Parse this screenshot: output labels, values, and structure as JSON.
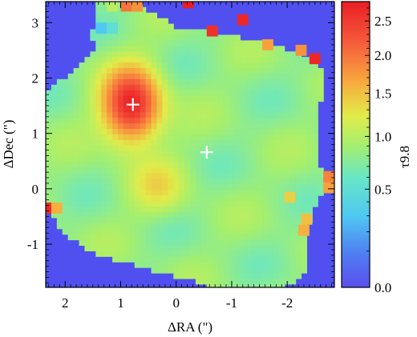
{
  "chart_data": {
    "type": "heatmap",
    "xlabel": "ΔRA (\")",
    "ylabel": "ΔDec (\")",
    "colorbar_label": "τ9.8",
    "x_ticks": [
      "2",
      "1",
      "0",
      "-1",
      "-2"
    ],
    "x_tick_values": [
      2,
      1,
      0,
      -1,
      -2
    ],
    "y_ticks": [
      "3",
      "2",
      "1",
      "0",
      "-1"
    ],
    "y_tick_values": [
      3,
      2,
      1,
      0,
      -1
    ],
    "xlim": [
      2.35,
      -2.85
    ],
    "ylim": [
      -1.78,
      3.38
    ],
    "colorbar_ticks": [
      "2.5",
      "2.0",
      "1.5",
      "1.0",
      "0.5",
      "0.0"
    ],
    "colorbar_tick_values": [
      2.5,
      2.0,
      1.5,
      1.0,
      0.5,
      0.0
    ],
    "colorbar_range": [
      0.0,
      2.8
    ],
    "background_color": "#5050f0",
    "markers": [
      {
        "symbol": "+",
        "color": "#ffffff",
        "ra": 0.78,
        "dec": 1.52
      },
      {
        "symbol": "+",
        "color": "#ffffff",
        "ra": -0.55,
        "dec": 0.66
      }
    ],
    "blobs": [
      {
        "ra": 0.8,
        "dec": 1.5,
        "peak": 2.75,
        "sigma_ra": 0.35,
        "sigma_dec": 0.45
      },
      {
        "ra": 0.32,
        "dec": 0.02,
        "peak": 1.25,
        "sigma_ra": 0.35,
        "sigma_dec": 0.35
      }
    ],
    "base_level": 0.82,
    "outline_dec": [
      3.35,
      2.9,
      2.7,
      2.55,
      2.4,
      2.2,
      1.8,
      1.3,
      0.9,
      0.4,
      0.0,
      -0.4,
      -0.8,
      -1.2,
      -1.5,
      -1.75
    ],
    "outline_ra_left": [
      1.45,
      1.5,
      1.5,
      1.4,
      1.6,
      1.75,
      2.3,
      2.3,
      2.3,
      2.3,
      2.3,
      2.3,
      2.05,
      1.45,
      0.3,
      -0.6
    ],
    "outline_ra_right": [
      0.8,
      -0.05,
      -1.4,
      -1.9,
      -2.3,
      -2.65,
      -2.65,
      -2.55,
      -2.6,
      -2.6,
      -2.65,
      -2.45,
      -2.35,
      -2.35,
      -2.35,
      -2.0
    ],
    "outlier_pixels": [
      {
        "ra": -0.22,
        "dec": 3.36,
        "value": 2.8
      },
      {
        "ra": -1.2,
        "dec": 3.05,
        "value": 2.7
      },
      {
        "ra": -0.65,
        "dec": 2.85,
        "value": 2.6
      },
      {
        "ra": -2.5,
        "dec": 2.35,
        "value": 2.7
      },
      {
        "ra": -2.25,
        "dec": 2.5,
        "value": 1.8
      },
      {
        "ra": -1.65,
        "dec": 2.6,
        "value": 1.7
      },
      {
        "ra": 2.25,
        "dec": -0.35,
        "value": 2.7
      },
      {
        "ra": 2.15,
        "dec": -0.35,
        "value": 1.6
      },
      {
        "ra": -2.75,
        "dec": 0.22,
        "value": 1.9
      },
      {
        "ra": -2.75,
        "dec": 0.02,
        "value": 1.7
      },
      {
        "ra": -2.05,
        "dec": -0.15,
        "value": 1.4
      },
      {
        "ra": -2.35,
        "dec": -0.55,
        "value": 1.5
      },
      {
        "ra": -2.3,
        "dec": -0.75,
        "value": 1.6
      },
      {
        "ra": 0.7,
        "dec": 3.3,
        "value": 1.8
      },
      {
        "ra": 0.9,
        "dec": 3.3,
        "value": 2.0
      },
      {
        "ra": 1.15,
        "dec": 3.3,
        "value": 1.0
      },
      {
        "ra": 1.15,
        "dec": 2.9,
        "value": 0.5
      },
      {
        "ra": 1.35,
        "dec": 2.9,
        "value": 0.3
      }
    ]
  }
}
